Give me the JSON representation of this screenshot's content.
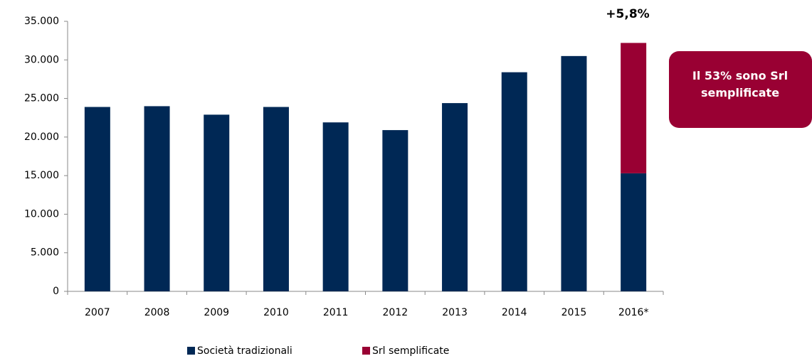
{
  "chart_data": {
    "type": "bar",
    "stacked": true,
    "categories": [
      "2007",
      "2008",
      "2009",
      "2010",
      "2011",
      "2012",
      "2013",
      "2014",
      "2015",
      "2016*"
    ],
    "series": [
      {
        "name": "Società tradizionali",
        "color": "#002855",
        "values": [
          23900,
          24000,
          22900,
          23900,
          21900,
          20900,
          24400,
          28400,
          30500,
          15300
        ]
      },
      {
        "name": "Srl semplificate",
        "color": "#990033",
        "values": [
          null,
          null,
          null,
          null,
          null,
          null,
          null,
          null,
          null,
          16900
        ]
      }
    ],
    "ylim": [
      0,
      35000
    ],
    "yticks": [
      0,
      {
        "value": 5000,
        "label": "5.000"
      },
      {
        "value": 10000,
        "label": "10.000"
      },
      {
        "value": 15000,
        "label": "15.000"
      },
      {
        "value": 20000,
        "label": "20.000"
      },
      {
        "value": 25000,
        "label": "25.000"
      },
      {
        "value": 30000,
        "label": "30.000"
      },
      {
        "value": 35000,
        "label": "35.000"
      }
    ],
    "annotations": [
      "+5,8%",
      "Il 53% sono Srl semplificate"
    ],
    "legend": "bottom"
  }
}
